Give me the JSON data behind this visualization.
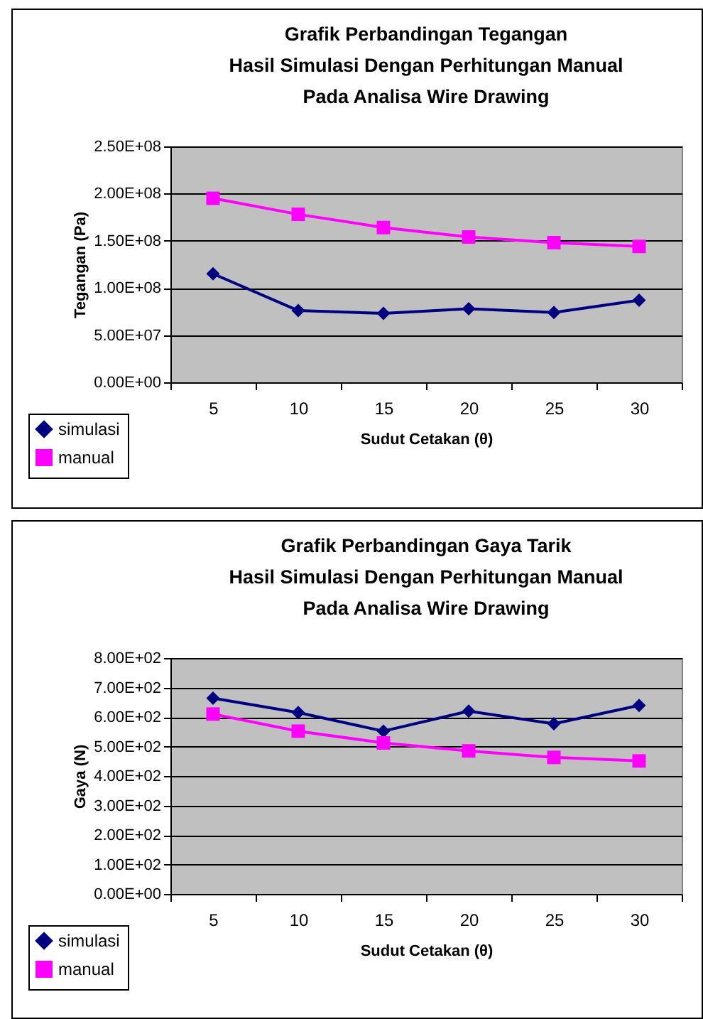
{
  "chart_data": [
    {
      "type": "line",
      "title": "Grafik Perbandingan Tegangan\nHasil Simulasi Dengan Perhitungan Manual\nPada Analisa Wire Drawing",
      "xlabel": "Sudut Cetakan (θ)",
      "ylabel": "Tegangan (Pa)",
      "categories": [
        "5",
        "10",
        "15",
        "20",
        "25",
        "30"
      ],
      "series": [
        {
          "name": "simulasi",
          "color": "#000080",
          "marker": "diamond",
          "values": [
            115000000,
            76000000,
            73000000,
            78000000,
            74000000,
            87000000
          ]
        },
        {
          "name": "manual",
          "color": "#ff00ff",
          "marker": "square",
          "values": [
            195000000,
            178000000,
            164000000,
            154000000,
            148000000,
            144000000
          ]
        }
      ],
      "ylim": [
        0,
        250000000
      ],
      "yticks": [
        {
          "value": 0,
          "label": "0.00E+00"
        },
        {
          "value": 50000000,
          "label": "5.00E+07"
        },
        {
          "value": 100000000,
          "label": "1.00E+08"
        },
        {
          "value": 150000000,
          "label": "1.50E+08"
        },
        {
          "value": 200000000,
          "label": "2.00E+08"
        },
        {
          "value": 250000000,
          "label": "2.50E+08"
        }
      ],
      "grid": "y",
      "legend": "bottom left"
    },
    {
      "type": "line",
      "title": "Grafik Perbandingan Gaya Tarik\nHasil Simulasi Dengan Perhitungan Manual\nPada Analisa Wire Drawing",
      "xlabel": "Sudut Cetakan (θ)",
      "ylabel": "Gaya (N)",
      "categories": [
        "5",
        "10",
        "15",
        "20",
        "25",
        "30"
      ],
      "series": [
        {
          "name": "simulasi",
          "color": "#000080",
          "marker": "diamond",
          "values": [
            664,
            615,
            552,
            620,
            577,
            639
          ]
        },
        {
          "name": "manual",
          "color": "#ff00ff",
          "marker": "square",
          "values": [
            610,
            552,
            512,
            485,
            463,
            451
          ]
        }
      ],
      "ylim": [
        0,
        800
      ],
      "yticks": [
        {
          "value": 0,
          "label": "0.00E+00"
        },
        {
          "value": 100,
          "label": "1.00E+02"
        },
        {
          "value": 200,
          "label": "2.00E+02"
        },
        {
          "value": 300,
          "label": "3.00E+02"
        },
        {
          "value": 400,
          "label": "4.00E+02"
        },
        {
          "value": 500,
          "label": "5.00E+02"
        },
        {
          "value": 600,
          "label": "6.00E+02"
        },
        {
          "value": 700,
          "label": "7.00E+02"
        },
        {
          "value": 800,
          "label": "8.00E+02"
        }
      ],
      "grid": "y",
      "legend": "bottom left"
    }
  ]
}
